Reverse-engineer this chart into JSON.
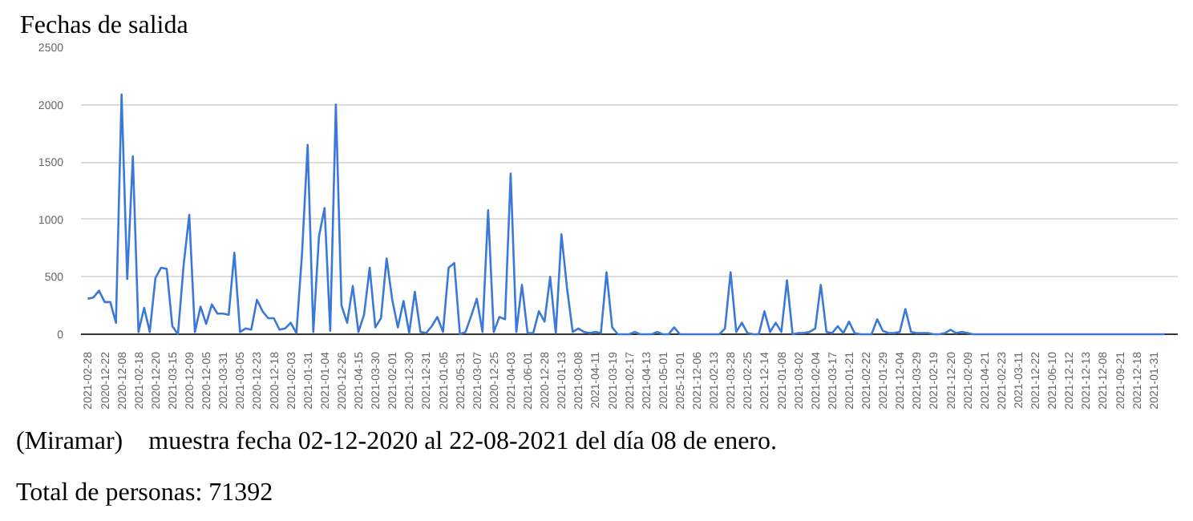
{
  "chart_data": {
    "type": "line",
    "title": "Fechas de salida",
    "categories": [
      "2021-02-28",
      null,
      null,
      "2020-12-22",
      null,
      null,
      "2020-12-08",
      null,
      null,
      "2021-02-18",
      null,
      null,
      "2020-12-20",
      null,
      null,
      "2021-03-15",
      null,
      null,
      "2020-12-09",
      null,
      null,
      "2020-12-05",
      null,
      null,
      "2021-03-31",
      null,
      null,
      "2021-03-05",
      null,
      null,
      "2020-12-23",
      null,
      null,
      "2020-12-18",
      null,
      null,
      "2021-02-03",
      null,
      null,
      "2021-01-31",
      null,
      null,
      "2021-01-04",
      null,
      null,
      "2020-12-26",
      null,
      null,
      "2021-04-15",
      null,
      null,
      "2021-03-30",
      null,
      null,
      "2021-02-01",
      null,
      null,
      "2021-12-30",
      null,
      null,
      "2021-12-31",
      null,
      null,
      "2021-01-05",
      null,
      null,
      "2021-05-31",
      null,
      null,
      "2021-03-07",
      null,
      null,
      "2020-12-25",
      null,
      null,
      "2021-04-03",
      null,
      null,
      "2021-06-01",
      null,
      null,
      "2020-12-28",
      null,
      null,
      "2021-01-13",
      null,
      null,
      "2021-03-08",
      null,
      null,
      "2021-04-11",
      null,
      null,
      "2021-03-19",
      null,
      null,
      "2021-02-17",
      null,
      null,
      "2021-04-13",
      null,
      null,
      "2021-05-01",
      null,
      null,
      "2025-12-01",
      null,
      null,
      "2021-12-06",
      null,
      null,
      "2021-02-13",
      null,
      null,
      "2021-03-28",
      null,
      null,
      "2021-02-25",
      null,
      null,
      "2021-12-14",
      null,
      null,
      "2021-01-08",
      null,
      null,
      "2021-03-02",
      null,
      null,
      "2021-02-04",
      null,
      null,
      "2021-03-17",
      null,
      null,
      "2021-01-21",
      null,
      null,
      "2021-02-22",
      null,
      null,
      "2021-01-29",
      null,
      null,
      "2021-12-04",
      null,
      null,
      "2021-03-29",
      null,
      null,
      "2021-02-19",
      null,
      null,
      "2021-12-20",
      null,
      null,
      "2021-02-09",
      null,
      null,
      "2021-04-21",
      null,
      null,
      "2021-02-23",
      null,
      null,
      "2021-03-11",
      null,
      null,
      "2021-12-22",
      null,
      null,
      "2021-06-10",
      null,
      null,
      "2021-12-12",
      null,
      null,
      "2021-12-13",
      null,
      null,
      "2021-12-08",
      null,
      null,
      "2021-09-21",
      null,
      null,
      "2021-12-18",
      null,
      null,
      "2021-01-31",
      null,
      null
    ],
    "values": [
      310,
      320,
      380,
      280,
      280,
      100,
      2090,
      480,
      1550,
      20,
      230,
      20,
      490,
      580,
      570,
      70,
      0,
      600,
      1040,
      20,
      240,
      90,
      260,
      180,
      180,
      170,
      710,
      20,
      50,
      40,
      300,
      200,
      140,
      140,
      40,
      50,
      100,
      10,
      700,
      1650,
      20,
      850,
      1100,
      30,
      2000,
      250,
      100,
      420,
      20,
      170,
      580,
      60,
      140,
      660,
      300,
      60,
      290,
      10,
      370,
      20,
      10,
      70,
      150,
      20,
      580,
      620,
      0,
      20,
      160,
      310,
      20,
      1080,
      20,
      150,
      130,
      1400,
      20,
      430,
      10,
      10,
      200,
      110,
      500,
      10,
      870,
      400,
      20,
      50,
      20,
      10,
      20,
      10,
      540,
      60,
      0,
      0,
      0,
      20,
      0,
      0,
      0,
      20,
      0,
      0,
      60,
      0,
      0,
      0,
      0,
      0,
      0,
      0,
      0,
      50,
      540,
      20,
      100,
      10,
      0,
      0,
      200,
      20,
      100,
      20,
      470,
      0,
      10,
      10,
      20,
      50,
      430,
      20,
      10,
      70,
      10,
      110,
      10,
      0,
      0,
      0,
      130,
      30,
      10,
      10,
      20,
      220,
      20,
      10,
      10,
      10,
      0,
      0,
      10,
      40,
      10,
      20,
      10,
      0,
      0,
      0,
      0,
      0,
      0,
      0,
      0,
      0,
      0,
      0,
      0,
      0,
      0,
      0,
      0,
      0,
      0,
      0,
      0,
      0,
      0,
      0,
      0,
      0,
      0,
      0,
      0,
      0,
      0,
      0,
      0,
      0,
      0,
      0
    ],
    "color": "#3c78d8",
    "ylim": [
      0,
      2500
    ],
    "yticks": [
      0,
      500,
      1000,
      1500,
      2000,
      2500
    ],
    "grid": "y",
    "annotations": [
      "(Miramar)    muestra fecha 02-12-2020 al 22-08-2021 del día 08 de enero.",
      "Total de personas: 71392"
    ]
  }
}
